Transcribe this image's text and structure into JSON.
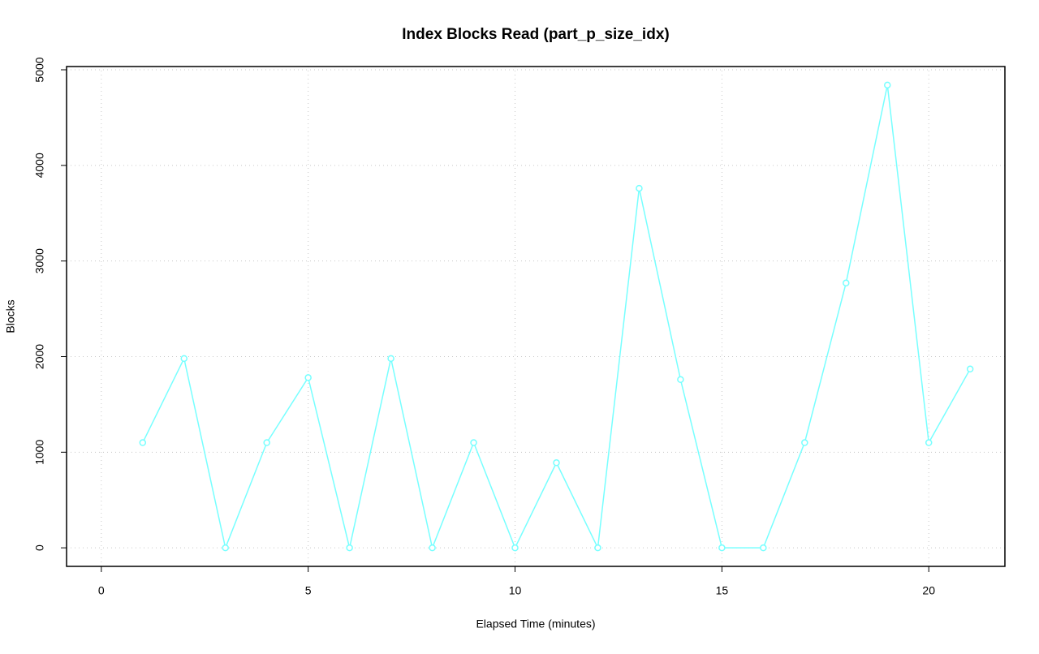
{
  "chart_data": {
    "type": "line",
    "title": "Index Blocks Read (part_p_size_idx)",
    "xlabel": "Elapsed Time (minutes)",
    "ylabel": "Blocks",
    "x": [
      1,
      2,
      3,
      4,
      5,
      6,
      7,
      8,
      9,
      10,
      11,
      12,
      13,
      14,
      15,
      16,
      17,
      18,
      19,
      20,
      21
    ],
    "values": [
      1100,
      1980,
      0,
      1100,
      1780,
      0,
      1980,
      0,
      1100,
      0,
      890,
      0,
      3760,
      1760,
      0,
      0,
      1100,
      2770,
      4840,
      1100,
      1870
    ],
    "color": "#77ffff",
    "xlim": [
      -0.84,
      21.84
    ],
    "xticks": [
      0,
      5,
      10,
      15,
      20
    ],
    "ylim": [
      -194,
      5034
    ],
    "yticks": [
      0,
      1000,
      2000,
      3000,
      4000,
      5000
    ],
    "grid": true
  }
}
